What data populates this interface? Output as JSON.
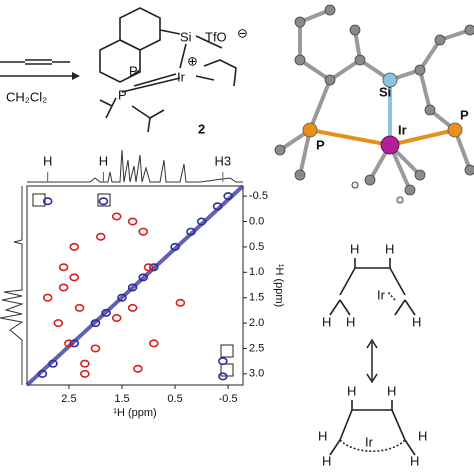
{
  "scheme": {
    "solvent": "CH₂Cl₂"
  },
  "complex": {
    "si": "Si",
    "counterion": "TfO",
    "anion_charge": "⊖",
    "p1": "P",
    "p2": "P",
    "ir": "Ir",
    "cation_charge": "⊕",
    "label": "2"
  },
  "crystal": {
    "si": "Si",
    "p1": "P",
    "ir": "Ir",
    "p2": "P"
  },
  "chart_data": {
    "type": "scatter",
    "xlabel": "¹H (ppm)",
    "ylabel": "¹H (ppm)",
    "xlim": [
      3.29,
      -0.78
    ],
    "ylim": [
      3.22,
      -0.7
    ],
    "xticks": [
      2.5,
      1.5,
      0.5,
      -0.5
    ],
    "yticks": [
      -0.5,
      {
        "value": 0,
        "label": "0.0"
      },
      0.5,
      {
        "value": 1,
        "label": "1.0"
      },
      1.5,
      {
        "value": 2,
        "label": "2.0"
      },
      2.5,
      {
        "value": 3,
        "label": "3.0"
      }
    ],
    "annotations": [
      {
        "text": "H",
        "x": 2.9,
        "color": "#d6157f"
      },
      {
        "text": "H",
        "x": 1.85,
        "color": "#d6157f"
      },
      {
        "text": "H3",
        "x": -0.4,
        "color": "#666666"
      }
    ],
    "series": [
      {
        "color": "#2e2e96",
        "x": [
          3.0,
          2.8,
          2.4,
          2.0,
          1.8,
          1.5,
          1.3,
          1.1,
          0.9,
          0.5,
          0.2,
          0.0,
          -0.3,
          -0.5,
          2.9,
          1.85,
          -0.4,
          -0.4
        ],
        "y": [
          3.0,
          2.8,
          2.4,
          2.0,
          1.8,
          1.5,
          1.3,
          1.1,
          0.9,
          0.5,
          0.2,
          0.0,
          -0.3,
          -0.5,
          -0.4,
          -0.4,
          2.75,
          3.05
        ]
      },
      {
        "color": "#d62020",
        "x": [
          1.6,
          1.3,
          1.1,
          2.4,
          2.6,
          2.3,
          1.6,
          2.5,
          2.2,
          1.0,
          0.4,
          2.9,
          2.6,
          1.9,
          1.3,
          0.9,
          2.2,
          1.2,
          2.0,
          2.4,
          2.7
        ],
        "y": [
          -0.1,
          0.0,
          0.2,
          1.1,
          1.3,
          1.7,
          1.9,
          2.4,
          2.8,
          0.9,
          1.6,
          1.5,
          0.9,
          0.3,
          1.7,
          2.4,
          3.0,
          2.9,
          2.5,
          0.5,
          2.0
        ]
      }
    ]
  },
  "mechanism": {
    "top": [
      "H",
      "H",
      "H",
      "H",
      "Ir",
      "H"
    ],
    "bottom": [
      "H",
      "H",
      "H",
      "H",
      "Ir",
      "H",
      "H"
    ]
  }
}
